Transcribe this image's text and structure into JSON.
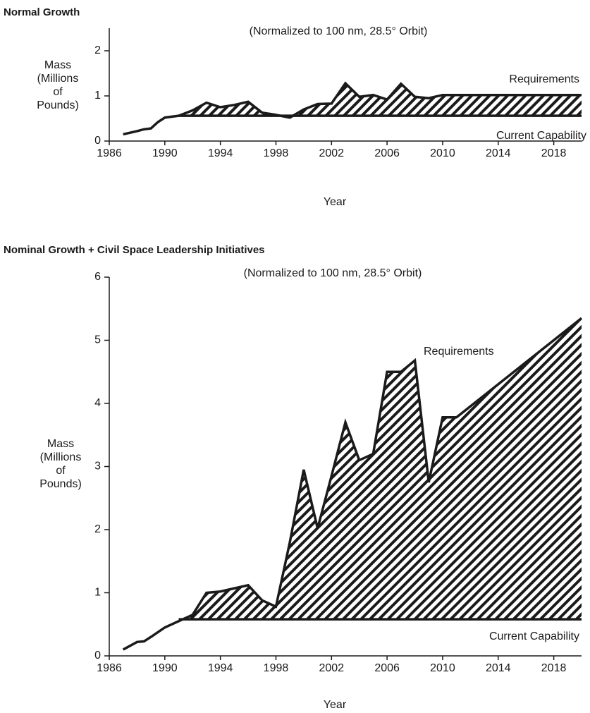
{
  "chart_data": [
    {
      "type": "line",
      "title": "Normal Growth",
      "subtitle": "(Normalized to 100 nm, 28.5° Orbit)",
      "x_label": "Year",
      "y_label": [
        "Mass",
        "(Millions",
        "of",
        "Pounds)"
      ],
      "x": [
        1987,
        1988,
        1988.5,
        1989,
        1989.5,
        1990,
        1991,
        1992,
        1993,
        1994,
        1995,
        1996,
        1997,
        1998,
        1999,
        2000,
        2001,
        2002,
        2003,
        2004,
        2005,
        2006,
        2007,
        2008,
        2009,
        2010,
        2020
      ],
      "series": [
        {
          "name": "Requirements",
          "color": "#1a1a1a",
          "values": [
            0.15,
            0.22,
            0.26,
            0.28,
            0.42,
            0.52,
            0.56,
            0.68,
            0.85,
            0.75,
            0.8,
            0.87,
            0.63,
            0.58,
            0.52,
            0.7,
            0.82,
            0.83,
            1.28,
            0.98,
            1.02,
            0.92,
            1.27,
            0.98,
            0.95,
            1.02,
            1.02
          ]
        },
        {
          "name": "Current Capability",
          "color": "#1a1a1a",
          "values": [
            null,
            null,
            null,
            null,
            null,
            null,
            0.56,
            0.56,
            0.56,
            0.56,
            0.56,
            0.56,
            0.56,
            0.56,
            0.56,
            0.56,
            0.56,
            0.56,
            0.56,
            0.56,
            0.56,
            0.56,
            0.56,
            0.56,
            0.56,
            0.56,
            0.56
          ]
        }
      ],
      "xlim": [
        1986,
        2020
      ],
      "xticks": [
        1986,
        1990,
        1994,
        1998,
        2002,
        2006,
        2010,
        2014,
        2018
      ],
      "ylim": [
        0,
        2.5
      ],
      "yticks": [
        0,
        1,
        2
      ],
      "grid": false
    },
    {
      "type": "line",
      "title": "Nominal Growth + Civil Space Leadership Initiatives",
      "subtitle": "(Normalized to 100 nm, 28.5° Orbit)",
      "x_label": "Year",
      "y_label": [
        "Mass",
        "(Millions",
        "of",
        "Pounds)"
      ],
      "x": [
        1987,
        1988,
        1988.5,
        1989,
        1990,
        1991,
        1992,
        1993,
        1994,
        1995,
        1996,
        1997,
        1998,
        1999,
        2000,
        2001,
        2002,
        2003,
        2004,
        2005,
        2006,
        2007,
        2008,
        2009,
        2010,
        2011,
        2020
      ],
      "series": [
        {
          "name": "Requirements",
          "color": "#1a1a1a",
          "values": [
            0.1,
            0.22,
            0.23,
            0.3,
            0.45,
            0.55,
            0.65,
            1.0,
            1.02,
            1.07,
            1.12,
            0.88,
            0.78,
            1.8,
            2.95,
            2.02,
            2.85,
            3.7,
            3.1,
            3.2,
            4.5,
            4.5,
            4.68,
            2.75,
            3.78,
            3.78,
            5.35
          ]
        },
        {
          "name": "Current Capability",
          "color": "#1a1a1a",
          "values": [
            null,
            null,
            null,
            null,
            null,
            0.58,
            0.58,
            0.58,
            0.58,
            0.58,
            0.58,
            0.58,
            0.58,
            0.58,
            0.58,
            0.58,
            0.58,
            0.58,
            0.58,
            0.58,
            0.58,
            0.58,
            0.58,
            0.58,
            0.58,
            0.58,
            0.58
          ]
        }
      ],
      "xlim": [
        1986,
        2020
      ],
      "xticks": [
        1986,
        1990,
        1994,
        1998,
        2002,
        2006,
        2010,
        2014,
        2018
      ],
      "ylim": [
        0,
        6
      ],
      "yticks": [
        0,
        1,
        2,
        3,
        4,
        5,
        6
      ],
      "grid": false
    }
  ]
}
